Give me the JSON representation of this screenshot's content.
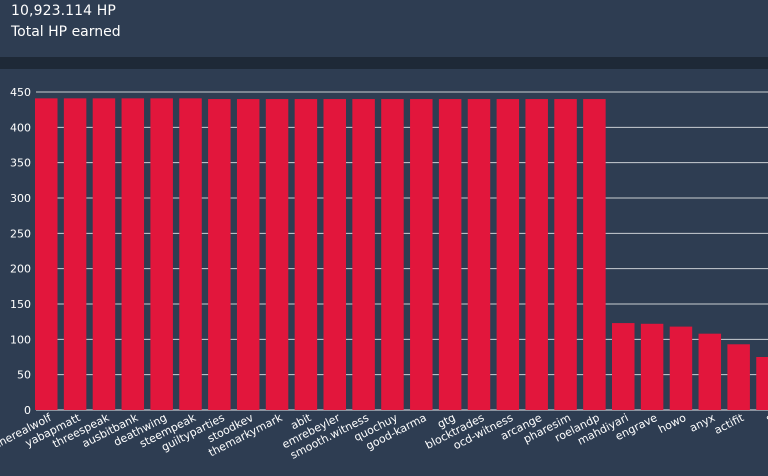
{
  "summary": {
    "hp_value": "10,923.114 HP",
    "caption": "Total HP earned"
  },
  "colors": {
    "background": "#2e3d52",
    "divider": "#1e2937",
    "bar": "#e2163c",
    "grid": "#ffffff"
  },
  "chart_data": {
    "type": "bar",
    "title": "",
    "xlabel": "",
    "ylabel": "",
    "ylim": [
      0,
      450
    ],
    "yticks": [
      0,
      50,
      100,
      150,
      200,
      250,
      300,
      350,
      400,
      450
    ],
    "grid": true,
    "categories": [
      "therealwolf",
      "yabapmatt",
      "threespeak",
      "ausbitbank",
      "deathwing",
      "steempeak",
      "guiltyparties",
      "stoodkev",
      "themarkymark",
      "abit",
      "emrebeyler",
      "smooth.witness",
      "quochuy",
      "good-karma",
      "gtg",
      "blocktrades",
      "ocd-witness",
      "arcange",
      "pharesim",
      "roelandp",
      "mahdiyari",
      "engrave",
      "howo",
      "anyx",
      "actifit",
      "s"
    ],
    "values": [
      441,
      441,
      441,
      441,
      441,
      441,
      440,
      440,
      440,
      440,
      440,
      440,
      440,
      440,
      440,
      440,
      440,
      440,
      440,
      440,
      123,
      122,
      118,
      108,
      93,
      75
    ]
  }
}
